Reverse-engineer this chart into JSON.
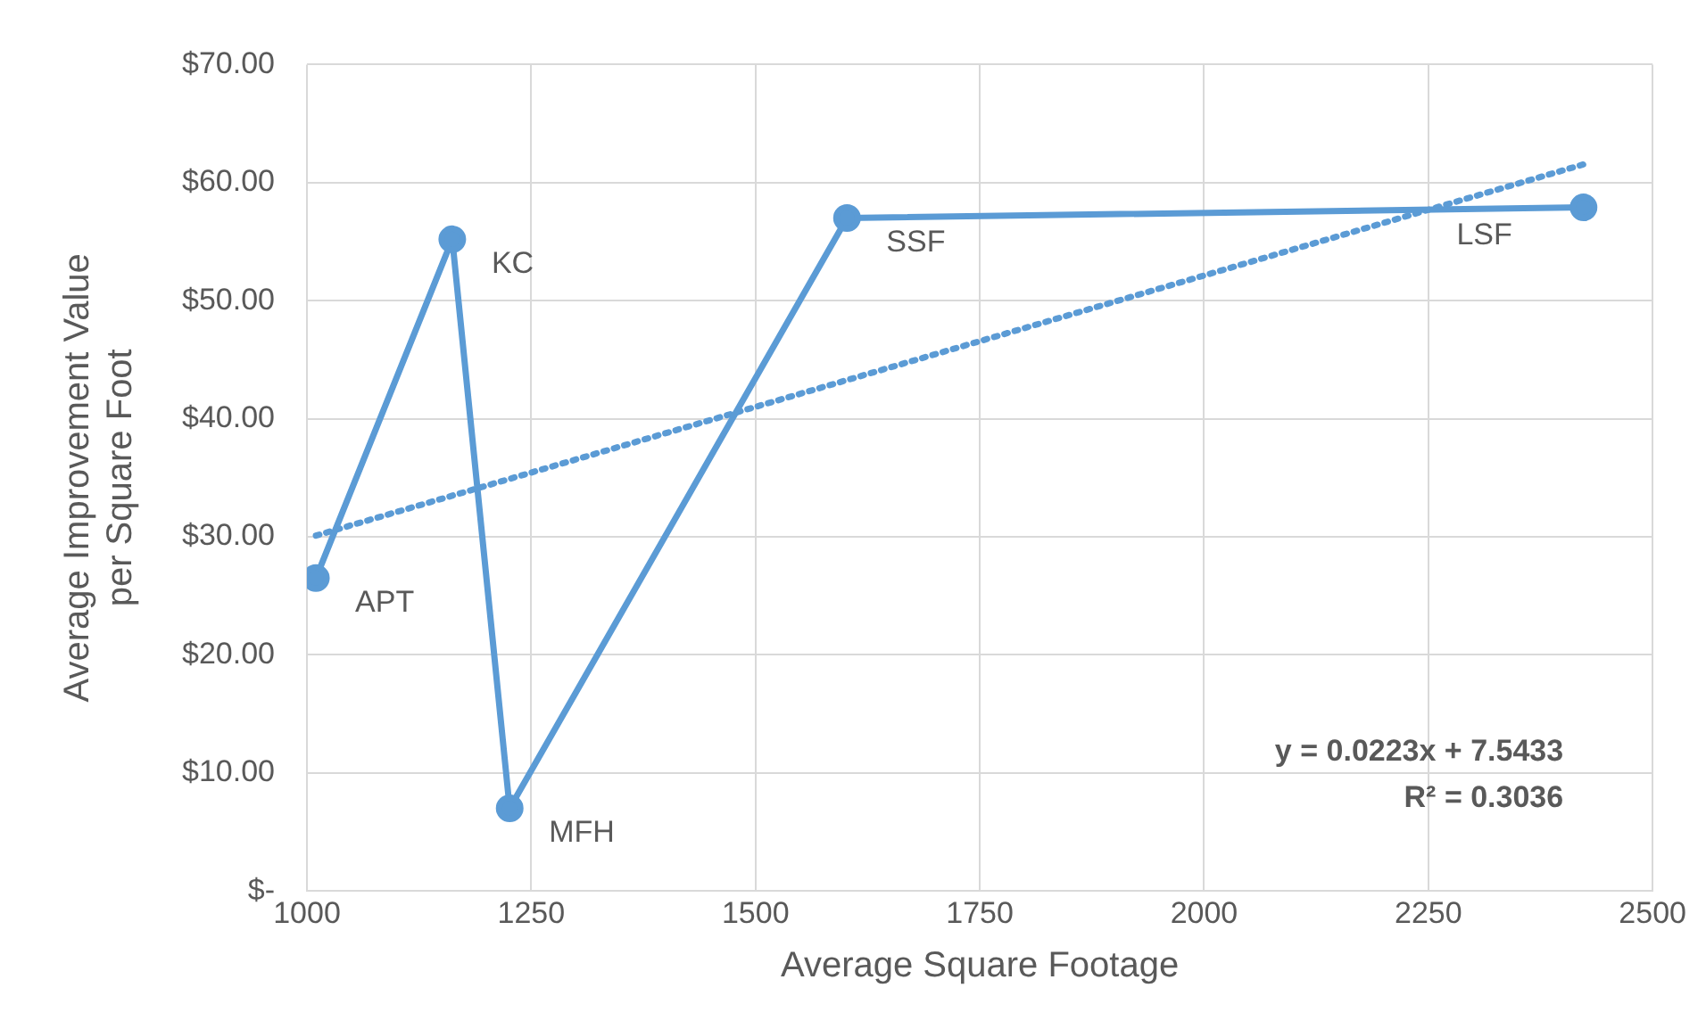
{
  "chart_data": {
    "type": "line",
    "xlabel": "Average Square Footage",
    "ylabel": "Average Improvement Value per Square Foot",
    "xlim": [
      1000,
      2500
    ],
    "xticks": [
      1000,
      1250,
      1500,
      1750,
      2000,
      2250,
      2500
    ],
    "ylim": [
      0,
      70
    ],
    "yticks": [
      {
        "value": 0,
        "label": "$-"
      },
      {
        "value": 10,
        "label": "$10.00"
      },
      {
        "value": 20,
        "label": "$20.00"
      },
      {
        "value": 30,
        "label": "$30.00"
      },
      {
        "value": 40,
        "label": "$40.00"
      },
      {
        "value": 50,
        "label": "$50.00"
      },
      {
        "value": 60,
        "label": "$60.00"
      },
      {
        "value": 70,
        "label": "$70.00"
      }
    ],
    "grid": true,
    "marker": "circle",
    "line_style": "solid",
    "series": [
      {
        "color": "#5b9bd5",
        "x": [
          1010,
          1162,
          1226,
          1602,
          2423
        ],
        "values": [
          26.5,
          55.2,
          7.0,
          57.0,
          57.9
        ]
      },
      {
        "type": "line",
        "color": "#5b9bd5",
        "marker": "none",
        "line_style": "dotted",
        "x": [
          1010,
          2430
        ],
        "values": [
          30.1,
          61.7
        ]
      }
    ],
    "annotations": [
      {
        "text": "APT",
        "x": 1010,
        "y": 26.5
      },
      {
        "text": "KC",
        "x": 1162,
        "y": 55.2
      },
      {
        "text": "MFH",
        "x": 1226,
        "y": 7.0
      },
      {
        "text": "SSF",
        "x": 1602,
        "y": 57.0
      },
      {
        "text": "LSF",
        "x": 2423,
        "y": 57.9
      },
      "y = 0.0223x + 7.5433",
      "R² = 0.3036"
    ]
  }
}
